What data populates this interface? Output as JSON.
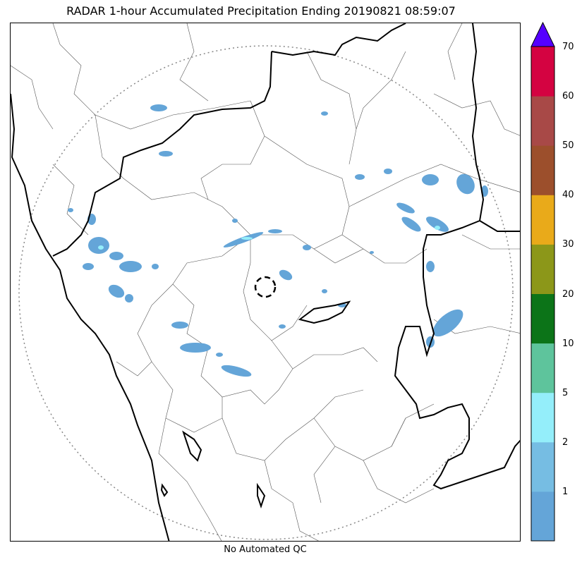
{
  "title": "RADAR 1-hour Accumulated Precipitation Ending 20190821 08:59:07",
  "footer": "No Automated QC",
  "colorbar": {
    "ticks": [
      "1",
      "2",
      "5",
      "10",
      "20",
      "30",
      "40",
      "50",
      "60",
      "70"
    ],
    "colors": [
      "#64a5d8",
      "#76bde3",
      "#94eefa",
      "#5ec49c",
      "#0c7418",
      "#8c9719",
      "#e9aa1a",
      "#9c4f2c",
      "#a84947",
      "#d40341"
    ],
    "over_color": "#5500ff"
  },
  "map": {
    "radar_range_ring_color": "#888888",
    "boundary_color": "#000000",
    "precip_color": "#64a5d8",
    "precip_highlight_color": "#94eefa"
  }
}
